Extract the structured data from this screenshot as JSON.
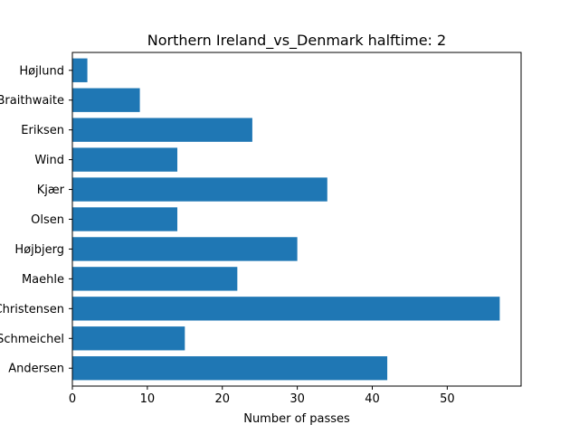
{
  "chart_data": {
    "type": "bar",
    "orientation": "horizontal",
    "title": "Northern Ireland_vs_Denmark halftime: 2",
    "xlabel": "Number of passes",
    "ylabel": "",
    "categories": [
      "Andersen",
      "Schmeichel",
      "Christensen",
      "Maehle",
      "Højbjerg",
      "Olsen",
      "Kjær",
      "Wind",
      "Eriksen",
      "Braithwaite",
      "Højlund"
    ],
    "values": [
      42,
      15,
      57,
      22,
      30,
      14,
      34,
      14,
      24,
      9,
      2
    ],
    "xlim": [
      0,
      60
    ],
    "xticks": [
      0,
      10,
      20,
      30,
      40,
      50
    ],
    "grid": false,
    "bar_color": "#1f77b4"
  }
}
